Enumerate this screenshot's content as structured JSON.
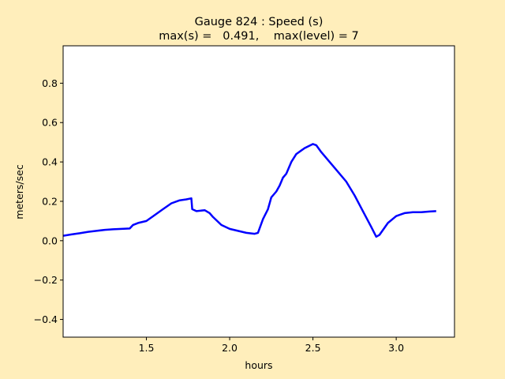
{
  "chart_data": {
    "type": "line",
    "title": "Gauge 824 : Speed (s)",
    "subtitle": "max(s) =   0.491,    max(level) = 7",
    "xlabel": "hours",
    "ylabel": "meters/sec",
    "xlim": [
      1.0,
      3.35
    ],
    "ylim": [
      -0.49,
      0.99
    ],
    "xticks": [
      1.5,
      2.0,
      2.5,
      3.0
    ],
    "xtick_labels": [
      "1.5",
      "2.0",
      "2.5",
      "3.0"
    ],
    "yticks": [
      -0.4,
      -0.2,
      0.0,
      0.2,
      0.4,
      0.6,
      0.8
    ],
    "ytick_labels": [
      "−0.4",
      "−0.2",
      "0.0",
      "0.2",
      "0.4",
      "0.6",
      "0.8"
    ],
    "grid": false,
    "series_color": "#0000ff",
    "axes_bg": "#ffffff",
    "figure_bg": "#ffeebb",
    "series": [
      {
        "x": [
          1.0,
          1.05,
          1.1,
          1.15,
          1.2,
          1.25,
          1.3,
          1.35,
          1.4,
          1.42,
          1.45,
          1.5,
          1.55,
          1.6,
          1.65,
          1.7,
          1.74,
          1.77,
          1.775,
          1.8,
          1.85,
          1.88,
          1.9,
          1.95,
          2.0,
          2.05,
          2.1,
          2.15,
          2.17,
          2.2,
          2.23,
          2.25,
          2.28,
          2.3,
          2.32,
          2.34,
          2.37,
          2.4,
          2.45,
          2.5,
          2.52,
          2.55,
          2.6,
          2.65,
          2.7,
          2.75,
          2.8,
          2.85,
          2.88,
          2.9,
          2.95,
          3.0,
          3.05,
          3.1,
          3.15,
          3.2,
          3.24
        ],
        "y": [
          0.025,
          0.032,
          0.038,
          0.045,
          0.05,
          0.055,
          0.058,
          0.06,
          0.062,
          0.08,
          0.09,
          0.1,
          0.13,
          0.16,
          0.19,
          0.205,
          0.21,
          0.215,
          0.16,
          0.15,
          0.155,
          0.14,
          0.12,
          0.08,
          0.06,
          0.05,
          0.04,
          0.035,
          0.04,
          0.11,
          0.16,
          0.22,
          0.25,
          0.28,
          0.32,
          0.34,
          0.4,
          0.44,
          0.47,
          0.491,
          0.485,
          0.45,
          0.4,
          0.35,
          0.3,
          0.23,
          0.15,
          0.07,
          0.02,
          0.03,
          0.09,
          0.125,
          0.14,
          0.145,
          0.145,
          0.148,
          0.15
        ]
      }
    ]
  }
}
